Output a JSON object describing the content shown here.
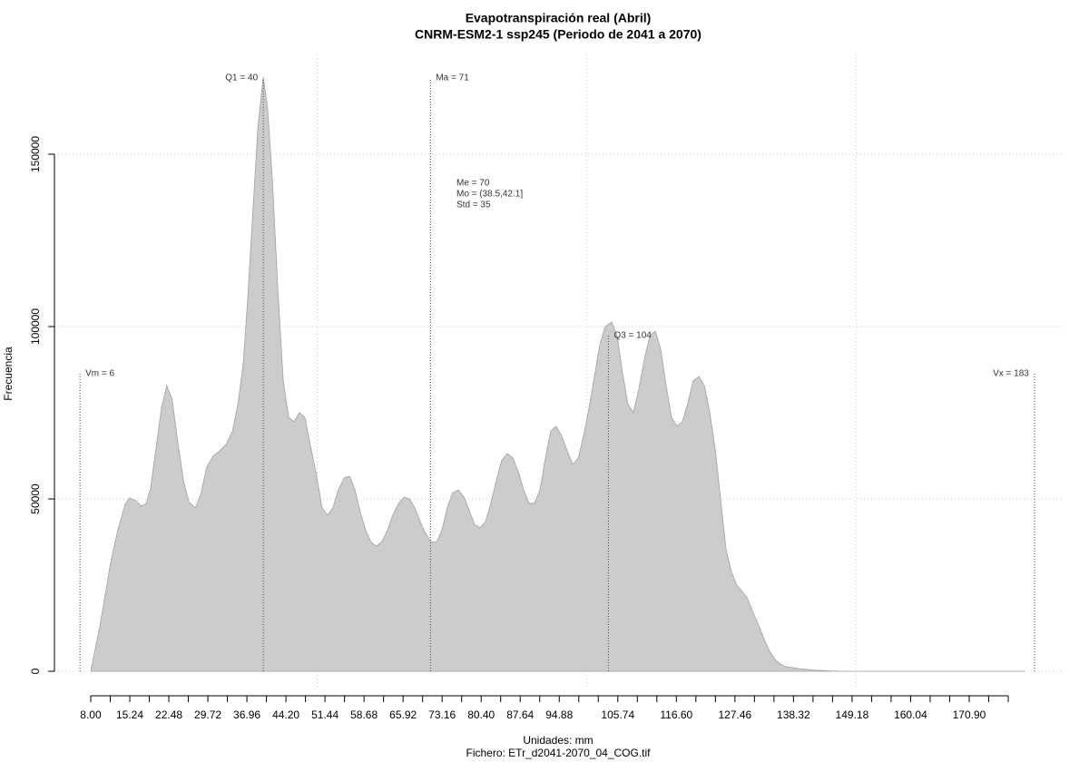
{
  "chart_data": {
    "type": "area",
    "title": "Evapotranspiración real (Abril)",
    "subtitle": "CNRM-ESM2-1 ssp245 (Periodo de 2041 a 2070)",
    "xlabel": "Unidades: mm",
    "caption": "Fichero: ETr_d2041-2070_04_COG.tif",
    "ylabel": "Frecuencia",
    "color": "#cccccc",
    "x": [
      8.0,
      9.7,
      11.7,
      13.0,
      14.4,
      15.2,
      16.4,
      17.4,
      18.3,
      19.1,
      20.1,
      21.1,
      22.1,
      23.1,
      24.2,
      25.2,
      26.2,
      27.4,
      28.4,
      29.5,
      30.7,
      31.9,
      33.1,
      34.3,
      35.3,
      36.3,
      37.1,
      38.1,
      39.0,
      40.0,
      40.8,
      41.7,
      42.7,
      43.7,
      44.7,
      45.7,
      46.7,
      47.7,
      48.7,
      49.9,
      50.9,
      51.9,
      52.9,
      53.9,
      55.0,
      56.0,
      57.0,
      58.0,
      59.0,
      60.0,
      61.0,
      62.0,
      63.0,
      64.0,
      65.1,
      66.1,
      67.1,
      68.1,
      69.1,
      70.1,
      71.1,
      72.1,
      73.1,
      74.1,
      75.1,
      76.2,
      77.2,
      78.2,
      79.2,
      80.2,
      81.2,
      82.2,
      83.2,
      84.2,
      85.2,
      86.3,
      87.3,
      88.3,
      89.3,
      90.3,
      91.3,
      92.3,
      93.3,
      94.3,
      95.3,
      96.4,
      97.4,
      98.4,
      99.4,
      100.4,
      101.4,
      102.4,
      103.4,
      104.6,
      105.6,
      106.6,
      107.6,
      108.6,
      109.6,
      110.7,
      111.7,
      112.7,
      113.7,
      114.7,
      115.7,
      116.7,
      117.7,
      118.7,
      119.7,
      120.8,
      121.8,
      122.8,
      123.8,
      124.8,
      125.8,
      126.8,
      127.8,
      128.8,
      129.8,
      130.8,
      131.9,
      132.9,
      133.9,
      134.9,
      135.9,
      136.9,
      137.9,
      139.3,
      141.0,
      142.6,
      145.2,
      147.7,
      181.3
    ],
    "values": [
      0,
      13200,
      31600,
      40800,
      48400,
      50300,
      49500,
      47900,
      48700,
      53200,
      64500,
      76300,
      82900,
      78900,
      65800,
      55300,
      49200,
      47400,
      51300,
      59200,
      62400,
      63900,
      65800,
      69700,
      77600,
      89500,
      107900,
      134200,
      157900,
      172400,
      163200,
      142100,
      110500,
      84200,
      73700,
      72400,
      75000,
      73700,
      65800,
      56600,
      47400,
      45300,
      47400,
      52600,
      56100,
      56600,
      52600,
      46100,
      40800,
      37400,
      36300,
      37600,
      40800,
      45300,
      48700,
      50500,
      50000,
      47400,
      43400,
      40000,
      37600,
      37400,
      40800,
      47400,
      51800,
      52600,
      50500,
      46600,
      42600,
      41600,
      43400,
      48700,
      55300,
      61100,
      63200,
      61800,
      57900,
      52600,
      48700,
      48700,
      52600,
      61800,
      69700,
      71100,
      68400,
      63700,
      60000,
      61800,
      68400,
      76300,
      85500,
      94700,
      100000,
      101300,
      97400,
      86800,
      77600,
      75000,
      81600,
      90800,
      97400,
      98700,
      93400,
      82900,
      73700,
      71100,
      72400,
      77600,
      84200,
      85500,
      82900,
      75000,
      64500,
      50000,
      35500,
      28900,
      25000,
      23200,
      21100,
      17100,
      13200,
      9200,
      5800,
      3400,
      2100,
      1300,
      1100,
      800,
      500,
      300,
      100,
      0,
      0
    ],
    "xlim": [
      1.27,
      188.07
    ],
    "ylim": [
      -5263,
      178947
    ],
    "xticks": [
      {
        "value": 8.0,
        "label": "8.00"
      },
      {
        "value": 15.24,
        "label": "15.24"
      },
      {
        "value": 22.48,
        "label": "22.48"
      },
      {
        "value": 29.72,
        "label": "29.72"
      },
      {
        "value": 36.96,
        "label": "36.96"
      },
      {
        "value": 44.2,
        "label": "44.20"
      },
      {
        "value": 51.44,
        "label": "51.44"
      },
      {
        "value": 58.68,
        "label": "58.68"
      },
      {
        "value": 65.92,
        "label": "65.92"
      },
      {
        "value": 73.16,
        "label": "73.16"
      },
      {
        "value": 80.4,
        "label": "80.40"
      },
      {
        "value": 87.64,
        "label": "87.64"
      },
      {
        "value": 94.88,
        "label": "94.88"
      },
      {
        "value": 105.74,
        "label": "105.74"
      },
      {
        "value": 116.6,
        "label": "116.60"
      },
      {
        "value": 127.46,
        "label": "127.46"
      },
      {
        "value": 138.32,
        "label": "138.32"
      },
      {
        "value": 149.18,
        "label": "149.18"
      },
      {
        "value": 160.04,
        "label": "160.04"
      },
      {
        "value": 170.9,
        "label": "170.90"
      }
    ],
    "xminorticks": [
      11.62,
      18.86,
      26.1,
      33.34,
      40.58,
      47.82,
      55.06,
      62.3,
      69.54,
      76.78,
      84.02,
      91.26,
      98.5,
      102.12,
      109.36,
      112.98,
      120.22,
      123.84,
      131.08,
      134.7,
      141.94,
      145.56,
      152.8,
      156.42,
      163.66,
      167.28,
      174.52,
      178.14
    ],
    "yticks": [
      0,
      50000,
      100000,
      150000
    ],
    "grid": true,
    "xgrid": [
      50,
      100,
      150
    ],
    "markers": [
      {
        "label": "Vm = 6",
        "value": 6
      },
      {
        "label": "Q1 = 40",
        "value": 40
      },
      {
        "label": "Ma = 71",
        "value": 71
      },
      {
        "label": "Q3 = 104",
        "value": 104
      },
      {
        "label": "Vx = 183",
        "value": 183
      }
    ],
    "stats": [
      "Me = 70",
      "Mo = (38.5,42.1]",
      "Std = 35"
    ]
  }
}
